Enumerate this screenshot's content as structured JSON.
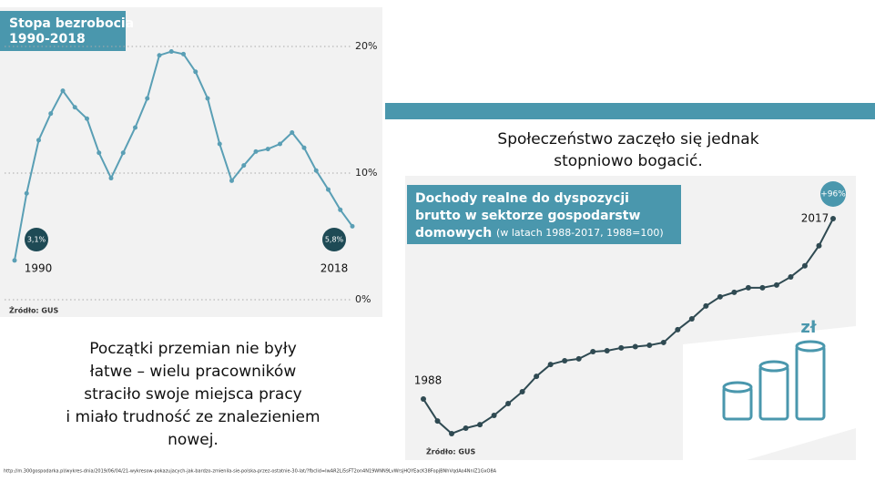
{
  "chart_data": [
    {
      "type": "line",
      "title": [
        "Stopa bezrobocia",
        "1990-2018"
      ],
      "source": "Źródło: GUS",
      "categories": [
        "1990",
        null,
        null,
        null,
        null,
        null,
        null,
        null,
        null,
        null,
        null,
        null,
        null,
        null,
        null,
        null,
        null,
        null,
        null,
        null,
        null,
        null,
        null,
        null,
        null,
        null,
        null,
        null,
        "2018"
      ],
      "values": [
        3.1,
        8.4,
        12.6,
        14.7,
        16.5,
        15.2,
        14.3,
        11.6,
        9.6,
        11.6,
        13.6,
        15.9,
        19.3,
        19.6,
        19.4,
        18.0,
        15.9,
        12.3,
        9.4,
        10.6,
        11.7,
        11.9,
        12.3,
        13.2,
        12.0,
        10.2,
        8.7,
        7.1,
        5.8
      ],
      "value_labels": [
        "3,1%",
        null,
        null,
        null,
        null,
        null,
        null,
        null,
        null,
        null,
        null,
        null,
        null,
        null,
        null,
        null,
        null,
        null,
        null,
        null,
        null,
        null,
        null,
        null,
        null,
        null,
        null,
        null,
        "5,8%"
      ],
      "color": "#5a9fb5",
      "ylim": [
        0,
        20
      ],
      "yticks": [
        {
          "value": 0,
          "label": "0%"
        },
        {
          "value": 10,
          "label": "10%"
        },
        {
          "value": 20,
          "label": "20%"
        }
      ],
      "grid": true
    },
    {
      "type": "line",
      "title": [
        "Dochody realne do dyspozycji",
        "brutto w sektorze gospodarstw",
        "domowych"
      ],
      "subtitle": "(w latach 1988-2017, 1988=100)",
      "source": "Źródło: GUS",
      "categories": [
        "1988",
        null,
        null,
        null,
        null,
        null,
        null,
        null,
        null,
        null,
        null,
        null,
        null,
        null,
        null,
        null,
        null,
        null,
        null,
        null,
        null,
        null,
        null,
        null,
        null,
        null,
        null,
        null,
        null,
        "2017"
      ],
      "values": [
        100,
        88.3,
        81.6,
        84.5,
        86.4,
        91.3,
        97.6,
        103.9,
        112.1,
        118.4,
        120.4,
        121.4,
        125.2,
        125.7,
        127.2,
        127.9,
        128.6,
        130.1,
        136.9,
        142.7,
        149.5,
        154.4,
        156.8,
        159.2,
        159.2,
        160.7,
        165.0,
        170.9,
        181.6,
        196
      ],
      "annotation": "+96%",
      "color": "#2f4a52",
      "ylim": [
        75,
        200
      ]
    }
  ],
  "captions": {
    "left": [
      "Początki przemian nie były",
      "łatwe – wielu pracowników",
      "straciło swoje miejsca pracy",
      "i miało trudność ze znalezieniem",
      "nowej."
    ],
    "right": [
      "Społeczeństwo zaczęło się jednak",
      "stopniowo bogacić."
    ]
  },
  "icon_label": "zł",
  "url": "http://m.300gospodarka.pl/wykres-dnia/2019/06/04/21-wykresow-pokazujacych-jak-bardzo-zmienila-sie-polska-przez-ostatnie-30-lat/?fbclid=IwAR2Li5sFT2on4N19WNN9LvWrsjHQYEacK38FopjBNhVqdAo4NnlZ1GxO8A"
}
